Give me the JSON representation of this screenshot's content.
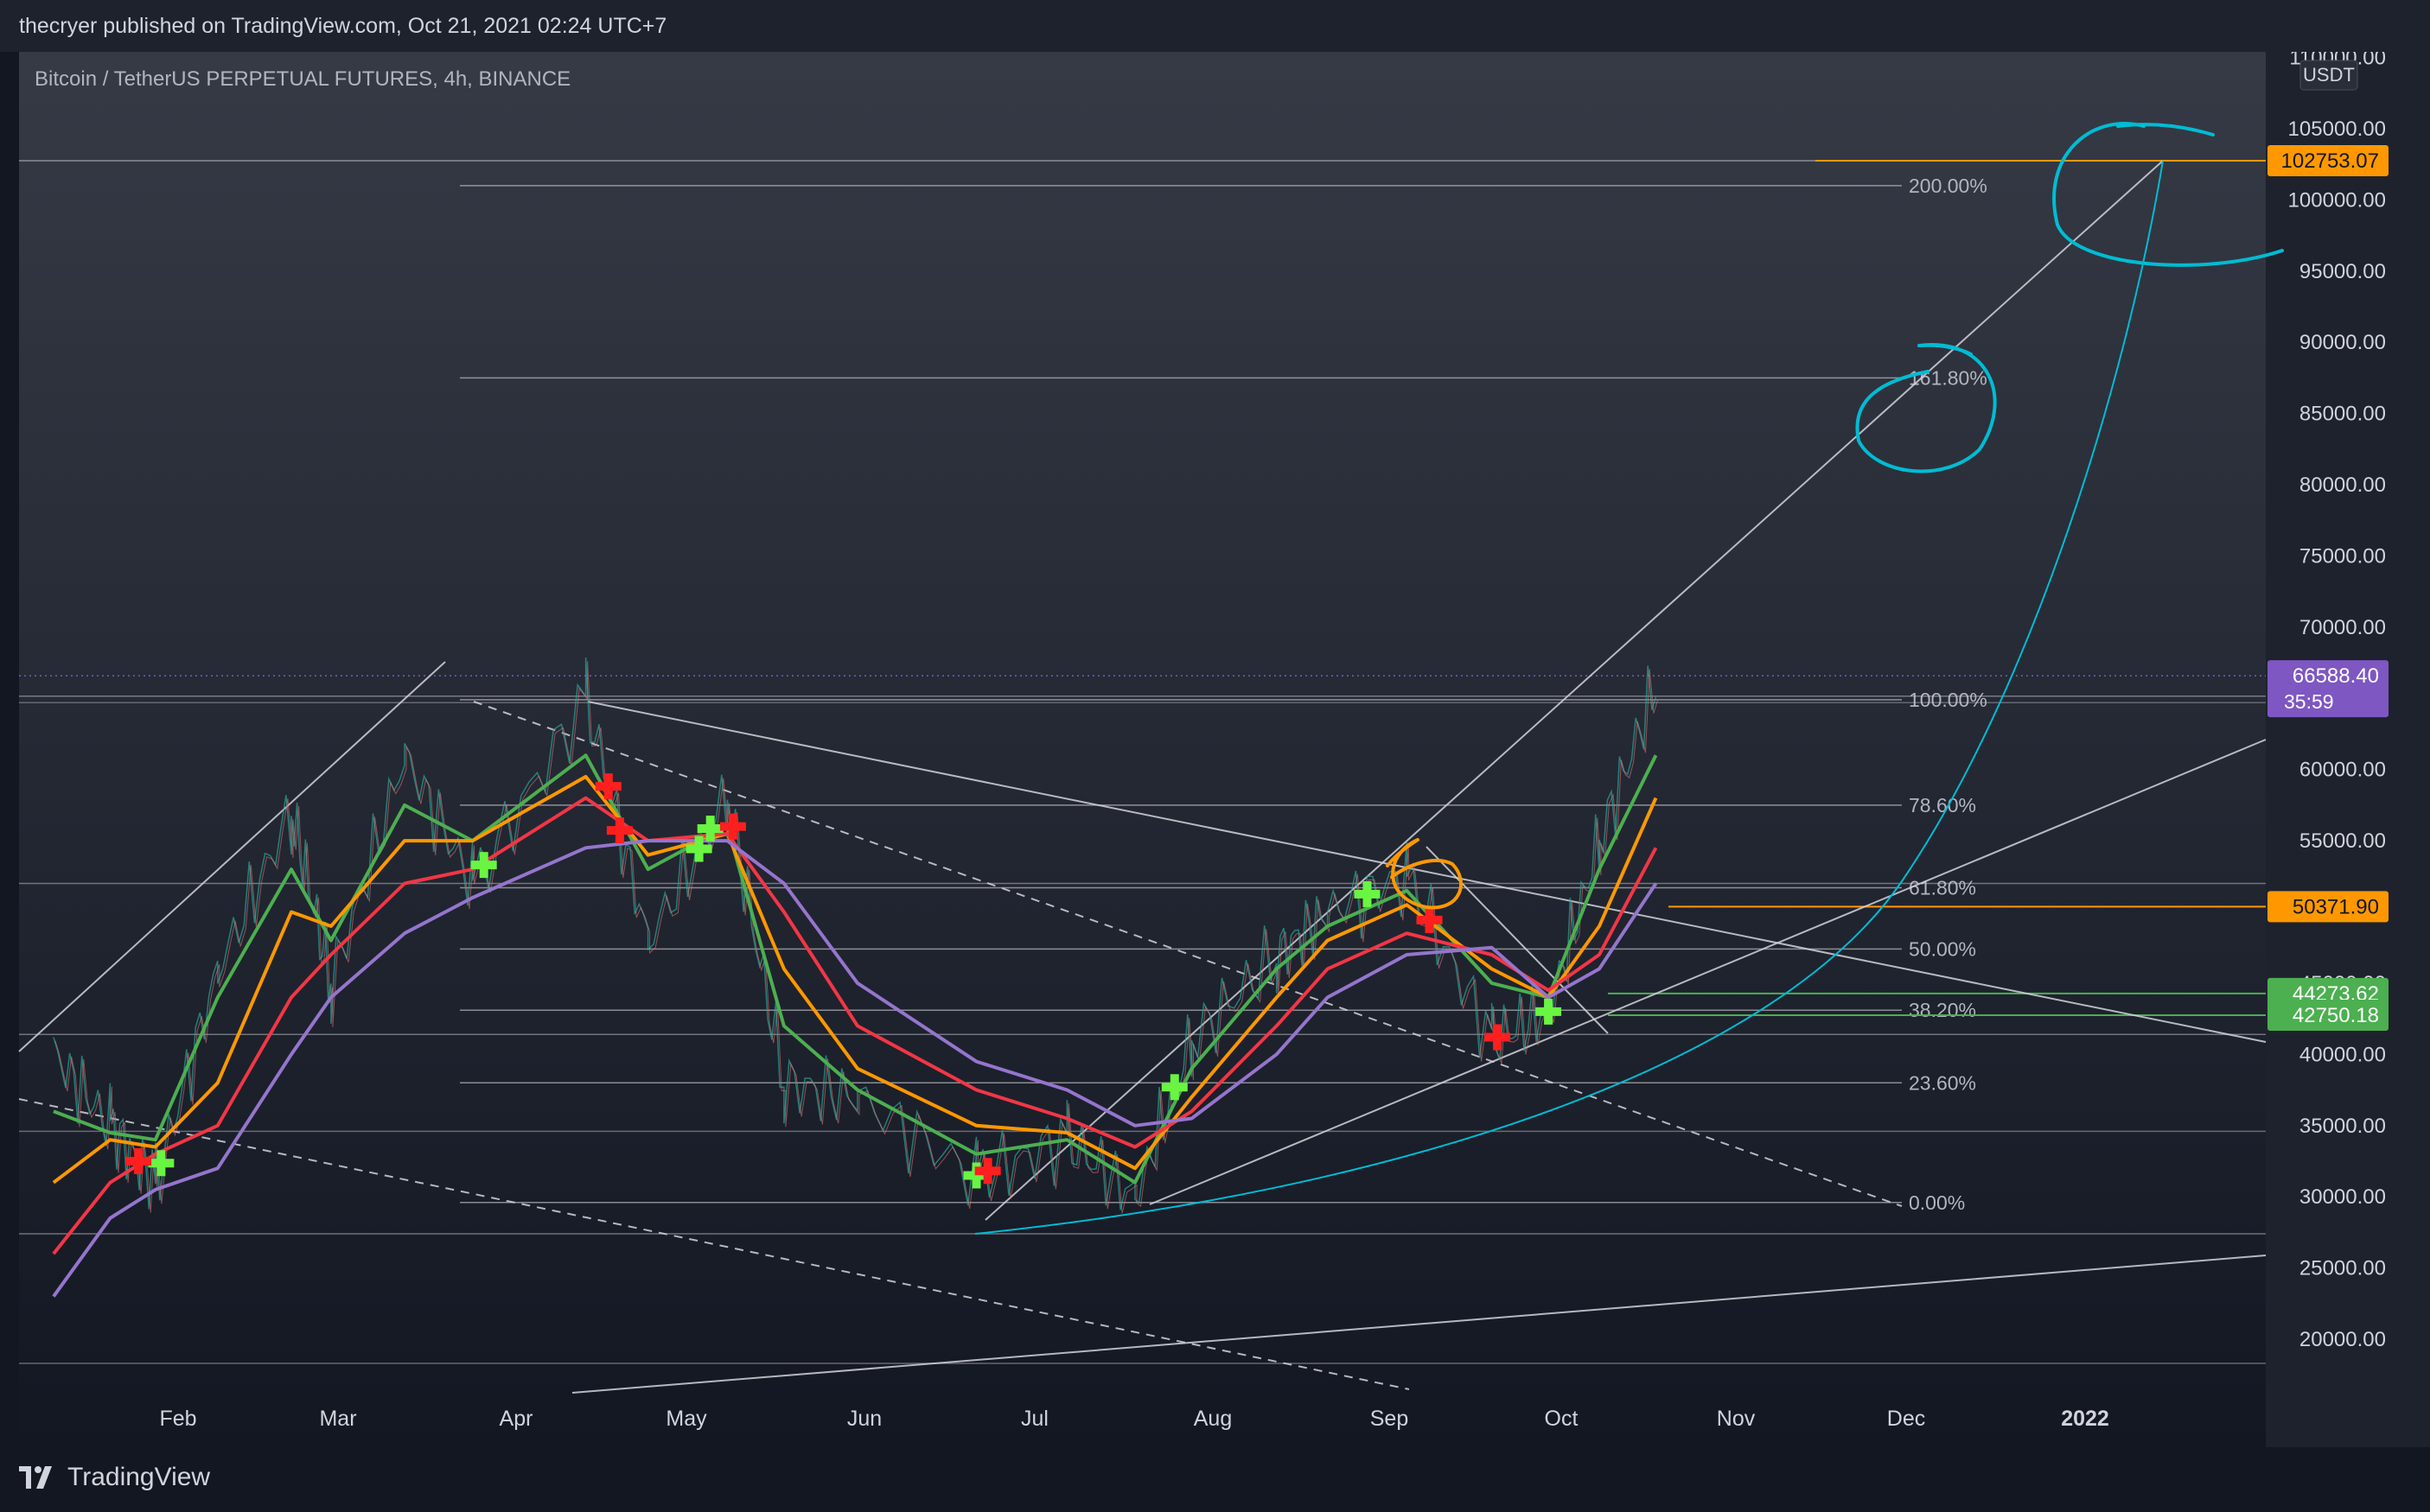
{
  "header": {
    "text": "thecryer published on TradingView.com, Oct 21, 2021 02:24 UTC+7"
  },
  "symbol": {
    "label": "Bitcoin / TetherUS PERPETUAL FUTURES, 4h, BINANCE"
  },
  "footer": {
    "brand": "TradingView"
  },
  "colors": {
    "background": "#131722",
    "price_axis_bg": "#1e222d",
    "current_price_tag": "#7e57c2",
    "orange_tag": "#ff9800",
    "green_tag": "#4caf50",
    "ma_green": "#4caf50",
    "ma_orange": "#ff9800",
    "ma_red": "#f23645",
    "ma_purple": "#9575cd",
    "annotation_cyan": "#00bcd4"
  },
  "chart_data": {
    "type": "line",
    "subtype": "candlestick with moving averages, fibonacci extension and trendlines",
    "currency": "USDT",
    "y_ticks": [
      20000.0,
      25000.0,
      30000.0,
      35000.0,
      40000.0,
      45000.0,
      50000.0,
      55000.0,
      60000.0,
      65000.0,
      70000.0,
      75000.0,
      80000.0,
      85000.0,
      90000.0,
      95000.0,
      100000.0,
      105000.0,
      110000.0
    ],
    "x_ticks": [
      "Feb",
      "Mar",
      "Apr",
      "May",
      "Jun",
      "Jul",
      "Aug",
      "Sep",
      "Oct",
      "Nov",
      "Dec",
      "2022"
    ],
    "ylim": [
      17000,
      111000
    ],
    "price_series": {
      "name": "BTCUSDT",
      "x": [
        "Jan 10",
        "Jan 20",
        "Jan 28",
        "Feb 8",
        "Feb 21",
        "Feb 28",
        "Mar 13",
        "Mar 25",
        "Apr 14",
        "Apr 25",
        "May 9",
        "May 19",
        "Jun 1",
        "Jun 22",
        "Jul 8",
        "Jul 20",
        "Jul 30",
        "Aug 14",
        "Aug 23",
        "Sep 6",
        "Sep 21",
        "Oct 1",
        "Oct 10",
        "Oct 20"
      ],
      "values": [
        40000,
        35000,
        31000,
        46000,
        57000,
        45000,
        61000,
        52000,
        65000,
        48000,
        58000,
        38000,
        37000,
        31500,
        34000,
        30000,
        41000,
        47000,
        50000,
        52500,
        41000,
        43000,
        55000,
        66000
      ]
    },
    "moving_averages": [
      {
        "color": "#4caf50",
        "values": [
          36000,
          34500,
          34000,
          44000,
          53000,
          48000,
          57500,
          55000,
          61000,
          53000,
          56000,
          42000,
          37500,
          33000,
          34000,
          31000,
          39000,
          46000,
          49000,
          51500,
          45000,
          44000,
          53000,
          61000
        ]
      },
      {
        "color": "#ff9800",
        "values": [
          31000,
          34000,
          33500,
          38000,
          50000,
          49000,
          55000,
          55000,
          59500,
          54000,
          55500,
          46000,
          39000,
          35000,
          34500,
          32000,
          37000,
          44000,
          48000,
          50500,
          46000,
          44000,
          49000,
          58000
        ]
      },
      {
        "color": "#f23645",
        "values": [
          26000,
          31000,
          33000,
          35000,
          44000,
          47000,
          52000,
          53000,
          58000,
          55000,
          55500,
          50000,
          42000,
          37500,
          35500,
          33500,
          36000,
          42000,
          46000,
          48500,
          47000,
          44500,
          47000,
          54500
        ]
      },
      {
        "color": "#9575cd",
        "values": [
          23000,
          28500,
          30500,
          32000,
          40000,
          44000,
          48500,
          51000,
          54500,
          55000,
          55000,
          52000,
          45000,
          39500,
          37500,
          35000,
          35500,
          40000,
          44000,
          47000,
          47500,
          44000,
          46000,
          52000
        ]
      }
    ],
    "fibonacci": [
      {
        "label": "200.00%",
        "price": 101000
      },
      {
        "label": "161.80%",
        "price": 87500
      },
      {
        "label": "100.00%",
        "price": 64900
      },
      {
        "label": "78.60%",
        "price": 57500
      },
      {
        "label": "61.80%",
        "price": 51700
      },
      {
        "label": "50.00%",
        "price": 47400
      },
      {
        "label": "38.20%",
        "price": 43100
      },
      {
        "label": "23.60%",
        "price": 38000
      },
      {
        "label": "0.00%",
        "price": 29600
      }
    ],
    "price_tags": [
      {
        "label": "102753.07",
        "price": 102753.07,
        "color": "#ff9800"
      },
      {
        "label": "66588.40",
        "sublabel": "35:59",
        "price": 66588.4,
        "color": "#7e57c2"
      },
      {
        "label": "50371.90",
        "price": 50371.9,
        "color": "#ff9800"
      },
      {
        "label": "44273.62",
        "price": 44273.62,
        "color": "#4caf50"
      },
      {
        "label": "42750.18",
        "price": 42750.18,
        "color": "#4caf50"
      }
    ],
    "buy_signals": [
      "Jan 29",
      "Mar 27",
      "May 4",
      "May 6",
      "Jun 22",
      "Jul 27",
      "Aug 30",
      "Oct 1"
    ],
    "sell_signals": [
      "Jan 25",
      "Apr 18",
      "Apr 20",
      "May 10",
      "Jun 24",
      "Sep 10",
      "Sep 22"
    ]
  }
}
